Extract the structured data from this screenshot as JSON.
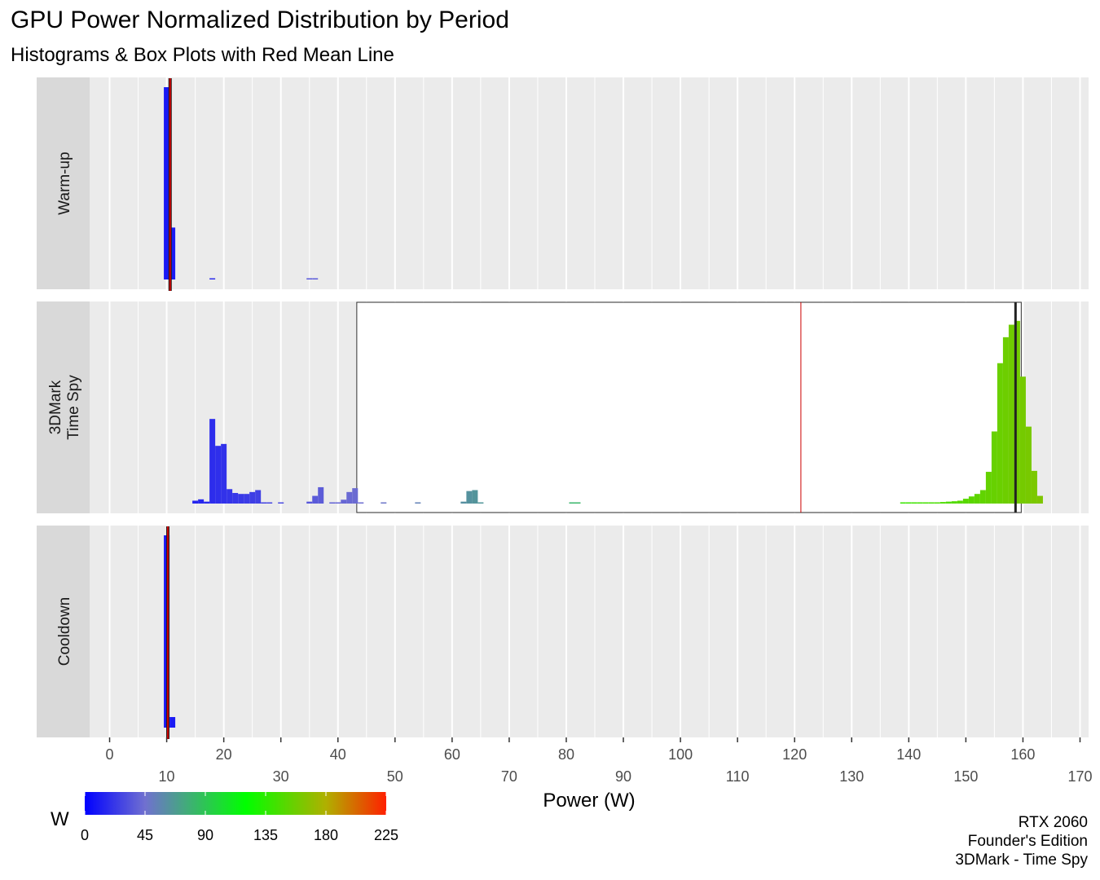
{
  "title": "GPU Power Normalized Distribution by Period",
  "subtitle": "Histograms & Box Plots with Red Mean Line",
  "caption": [
    "RTX 2060",
    "Founder's Edition",
    "3DMark - Time Spy"
  ],
  "colors": {
    "panel_bg": "#ebebeb",
    "strip_bg": "#d9d9d9",
    "grid": "#ffffff",
    "mean_line": "#cc0000",
    "median_line": "#222222",
    "box_fill": "#ffffff",
    "gradient": [
      "#0000ff",
      "#7070d0",
      "#00ff00",
      "#b0b000",
      "#ff2000"
    ]
  },
  "chart_data": {
    "type": "histogram",
    "facets": "rows",
    "xlabel": "Power (W)",
    "xlim": [
      -3.5,
      171.5
    ],
    "x_ticks": [
      0,
      10,
      20,
      30,
      40,
      50,
      60,
      70,
      80,
      90,
      100,
      110,
      120,
      130,
      140,
      150,
      160,
      170
    ],
    "x_tick_labels": [
      "0",
      "10",
      "20",
      "30",
      "40",
      "50",
      "60",
      "70",
      "80",
      "90",
      "100",
      "110",
      "120",
      "130",
      "140",
      "150",
      "160",
      "170"
    ],
    "y_axis_labels_shown": false,
    "legend": {
      "title": "W",
      "position": "bottom-left",
      "type": "gradient",
      "range": [
        0,
        225
      ],
      "breaks": [
        0,
        45,
        90,
        135,
        180,
        225
      ],
      "break_labels": [
        "0",
        "45",
        "90",
        "135",
        "180",
        "225"
      ]
    },
    "bin_width": 1,
    "panels": [
      {
        "label": [
          "Warm-up"
        ],
        "bars": [
          [
            10,
            1.0
          ],
          [
            11,
            0.27
          ],
          [
            18,
            0.004
          ],
          [
            35,
            0.003
          ],
          [
            36,
            0.005
          ]
        ],
        "box": null,
        "median": 10.6,
        "mean": 10.6
      },
      {
        "label": [
          "3DMark",
          "Time Spy"
        ],
        "bars": [
          [
            15,
            0.015
          ],
          [
            16,
            0.022
          ],
          [
            17,
            0.01
          ],
          [
            18,
            0.44
          ],
          [
            19,
            0.3
          ],
          [
            20,
            0.31
          ],
          [
            21,
            0.075
          ],
          [
            22,
            0.055
          ],
          [
            23,
            0.05
          ],
          [
            24,
            0.05
          ],
          [
            25,
            0.06
          ],
          [
            26,
            0.07
          ],
          [
            27,
            0.003
          ],
          [
            28,
            0.003
          ],
          [
            30,
            0.003
          ],
          [
            35,
            0.01
          ],
          [
            36,
            0.04
          ],
          [
            37,
            0.085
          ],
          [
            39,
            0.003
          ],
          [
            40,
            0.003
          ],
          [
            41,
            0.02
          ],
          [
            42,
            0.06
          ],
          [
            43,
            0.08
          ],
          [
            44,
            0.005
          ],
          [
            48,
            0.003
          ],
          [
            54,
            0.003
          ],
          [
            62,
            0.01
          ],
          [
            63,
            0.065
          ],
          [
            64,
            0.07
          ],
          [
            65,
            0.005
          ],
          [
            81,
            0.003
          ],
          [
            82,
            0.003
          ],
          [
            139,
            0.003
          ],
          [
            140,
            0.003
          ],
          [
            141,
            0.004
          ],
          [
            142,
            0.004
          ],
          [
            143,
            0.005
          ],
          [
            144,
            0.006
          ],
          [
            145,
            0.006
          ],
          [
            146,
            0.008
          ],
          [
            147,
            0.01
          ],
          [
            148,
            0.012
          ],
          [
            149,
            0.015
          ],
          [
            150,
            0.025
          ],
          [
            151,
            0.037
          ],
          [
            152,
            0.05
          ],
          [
            153,
            0.07
          ],
          [
            154,
            0.165
          ],
          [
            155,
            0.375
          ],
          [
            156,
            0.73
          ],
          [
            157,
            0.865
          ],
          [
            158,
            0.93
          ],
          [
            159,
            0.95
          ],
          [
            160,
            0.66
          ],
          [
            161,
            0.4
          ],
          [
            162,
            0.17
          ],
          [
            163,
            0.04
          ]
        ],
        "box": {
          "q1": 43.3,
          "median": 158.7,
          "q3": 159.7
        },
        "mean": 121.1
      },
      {
        "label": [
          "Cooldown"
        ],
        "bars": [
          [
            10,
            1.0
          ],
          [
            11,
            0.055
          ]
        ],
        "box": null,
        "median": 10.2,
        "mean": 10.2
      }
    ]
  }
}
